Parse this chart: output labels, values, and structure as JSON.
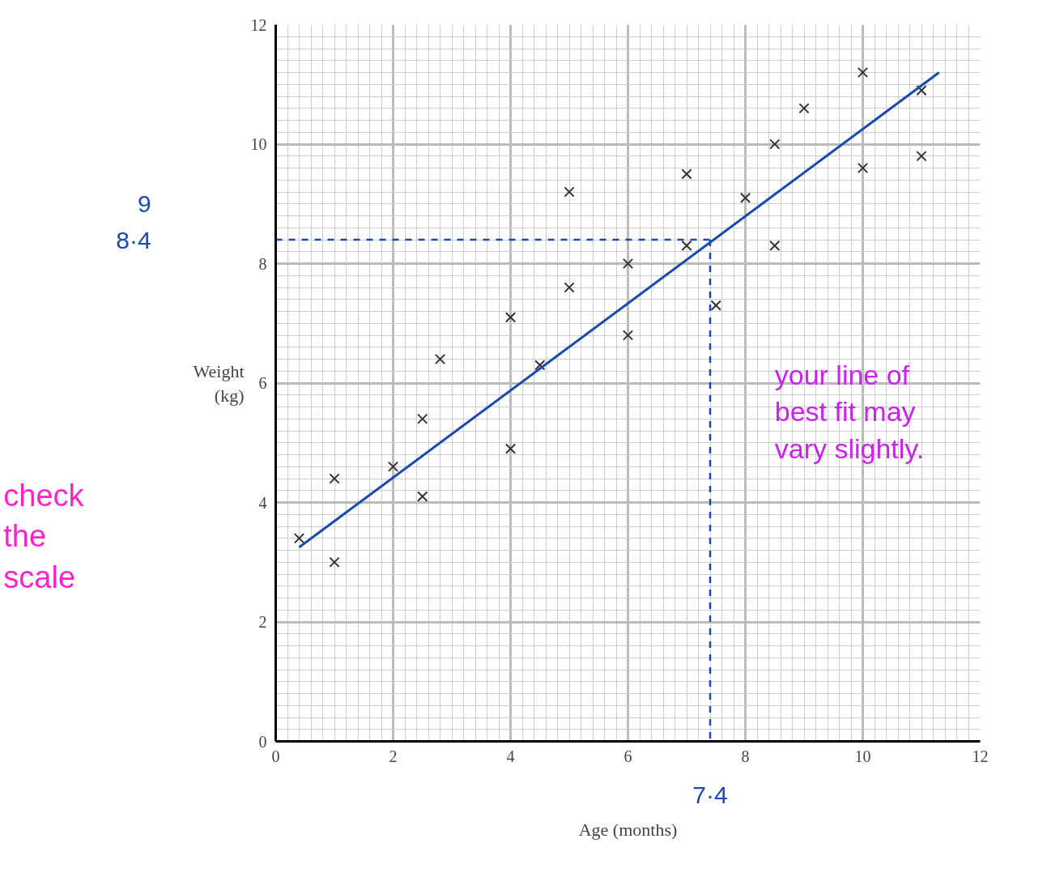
{
  "chart_data": {
    "type": "scatter",
    "xlabel": "Age (months)",
    "ylabel": "Weight (kg)",
    "xlim": [
      0,
      12
    ],
    "ylim": [
      0,
      12
    ],
    "xticks": [
      0,
      2,
      4,
      6,
      8,
      10,
      12
    ],
    "yticks": [
      0,
      2,
      4,
      6,
      8,
      10,
      12
    ],
    "grid": true,
    "series": [
      {
        "color": "#333333",
        "marker": "cross",
        "x": [
          0.4,
          1,
          1,
          2,
          2.5,
          2.5,
          2.8,
          4,
          4,
          4.5,
          5,
          5,
          6,
          6,
          7,
          7,
          7.5,
          8,
          8.5,
          8.5,
          9,
          10,
          10,
          11,
          11
        ],
        "values": [
          3.4,
          4.4,
          3.0,
          4.6,
          5.4,
          4.1,
          6.4,
          7.1,
          4.9,
          6.3,
          9.2,
          7.6,
          8.0,
          6.8,
          9.5,
          8.3,
          7.3,
          9.1,
          10.0,
          8.3,
          10.6,
          11.2,
          9.6,
          10.9,
          9.8
        ]
      },
      {
        "type": "line",
        "color": "#1a4aad",
        "marker": "none",
        "x": [
          0.4,
          11.3
        ],
        "values": [
          3.25,
          11.2
        ]
      },
      {
        "type": "line",
        "color": "#1a4aad",
        "marker": "none",
        "line_style": "dashed",
        "x": [
          0,
          7.4
        ],
        "values": [
          8.4,
          8.4
        ]
      },
      {
        "type": "line",
        "color": "#1a4aad",
        "marker": "none",
        "line_style": "dashed",
        "x": [
          7.4,
          7.4
        ],
        "values": [
          8.4,
          0
        ]
      }
    ],
    "annotations": [
      "9",
      "8·4",
      "7·4",
      "check the scale",
      "your line of best fit may vary slightly."
    ]
  }
}
